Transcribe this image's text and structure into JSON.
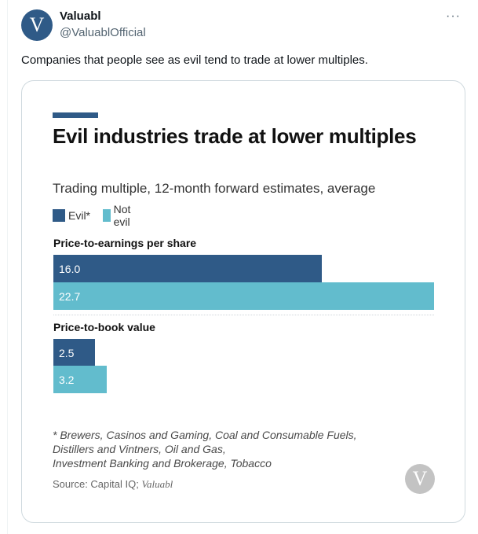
{
  "tweet": {
    "display_name": "Valuabl",
    "handle": "@ValuablOfficial",
    "avatar_letter": "V",
    "more_label": "···",
    "text": "Companies that people see as evil tend to trade at lower multiples."
  },
  "chart_data": {
    "type": "bar",
    "orientation": "horizontal",
    "title": "Evil industries trade at lower multiples",
    "subtitle": "Trading multiple, 12-month forward estimates, average",
    "categories": [
      "Price-to-earnings per share",
      "Price-to-book value"
    ],
    "series": [
      {
        "name": "Evil*",
        "color": "#2f5a87",
        "values": [
          16.0,
          2.5
        ],
        "labels": [
          "16.0",
          "2.5"
        ]
      },
      {
        "name": "Not evil",
        "color": "#62bccd",
        "values": [
          22.7,
          3.2
        ],
        "labels": [
          "22.7",
          "3.2"
        ]
      }
    ],
    "xlim": [
      0,
      22.7
    ],
    "footnote": [
      "* Brewers, Casinos and Gaming, Coal and Consumable Fuels,",
      "Distillers and Vintners, Oil and Gas,",
      "Investment Banking and Brokerage, Tobacco"
    ],
    "source_prefix": "Source: Capital IQ;",
    "source_brand": "Valuabl",
    "watermark_letter": "V"
  }
}
